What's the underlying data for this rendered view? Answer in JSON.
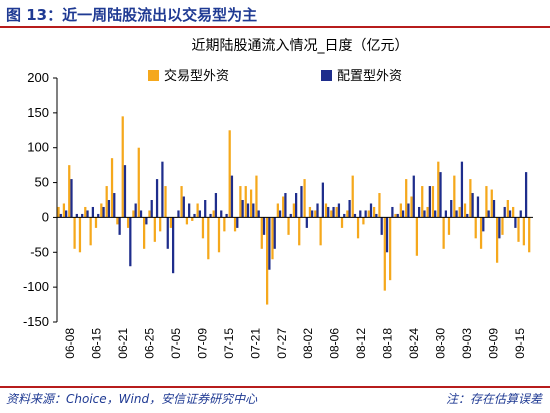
{
  "header": {
    "figure_title": "图 13：近一周陆股流出以交易型为主"
  },
  "footer": {
    "source": "资料来源：Choice，Wind，安信证券研究中心",
    "note": "注：存在估算误差"
  },
  "colors": {
    "trading": "#F5A81C",
    "allocation": "#1E2D8C",
    "accent": "#1f3a93",
    "rule": "#b71c1c"
  },
  "chart_data": {
    "type": "bar",
    "title": "近期陆股通流入情况_日度（亿元）",
    "xlabel": "",
    "ylabel": "",
    "ylim": [
      -150,
      200
    ],
    "yticks": [
      -150,
      -100,
      -50,
      0,
      50,
      100,
      150,
      200
    ],
    "legend_position": "top",
    "grid": false,
    "xtick_labels": [
      "06-08",
      "06-15",
      "06-21",
      "06-25",
      "07-05",
      "07-09",
      "07-15",
      "07-21",
      "07-27",
      "08-02",
      "08-06",
      "08-12",
      "08-18",
      "08-24",
      "08-30",
      "09-03",
      "09-09",
      "09-15"
    ],
    "series": [
      {
        "name": "交易型外资",
        "color": "#F5A81C",
        "values": [
          15,
          20,
          75,
          -45,
          -50,
          15,
          -40,
          -15,
          20,
          45,
          85,
          -10,
          145,
          -15,
          10,
          100,
          -45,
          10,
          -35,
          -20,
          45,
          -15,
          0,
          45,
          -10,
          -5,
          20,
          -30,
          -60,
          10,
          -50,
          -20,
          125,
          -20,
          45,
          45,
          40,
          60,
          -45,
          -125,
          -60,
          20,
          30,
          -25,
          20,
          -40,
          55,
          15,
          10,
          -40,
          20,
          10,
          15,
          -15,
          10,
          60,
          -30,
          -10,
          10,
          15,
          35,
          -105,
          -90,
          5,
          20,
          55,
          30,
          -55,
          45,
          15,
          45,
          80,
          -45,
          -25,
          60,
          15,
          20,
          55,
          -30,
          -45,
          45,
          40,
          -65,
          -25,
          25,
          15,
          -35,
          -40,
          -50
        ]
      },
      {
        "name": "配置型外资",
        "color": "#1E2D8C",
        "values": [
          5,
          10,
          55,
          5,
          5,
          10,
          15,
          5,
          15,
          25,
          35,
          -25,
          75,
          -70,
          20,
          10,
          -10,
          25,
          55,
          80,
          -45,
          -80,
          10,
          30,
          20,
          5,
          10,
          25,
          5,
          35,
          10,
          5,
          60,
          -15,
          25,
          20,
          20,
          10,
          -25,
          -75,
          -45,
          10,
          35,
          5,
          35,
          45,
          -15,
          10,
          20,
          50,
          15,
          15,
          20,
          5,
          25,
          5,
          10,
          10,
          20,
          5,
          -25,
          -50,
          15,
          5,
          10,
          20,
          60,
          15,
          10,
          45,
          10,
          65,
          10,
          25,
          10,
          80,
          5,
          35,
          30,
          -20,
          10,
          25,
          -30,
          15,
          10,
          -15,
          10,
          65
        ]
      }
    ]
  }
}
